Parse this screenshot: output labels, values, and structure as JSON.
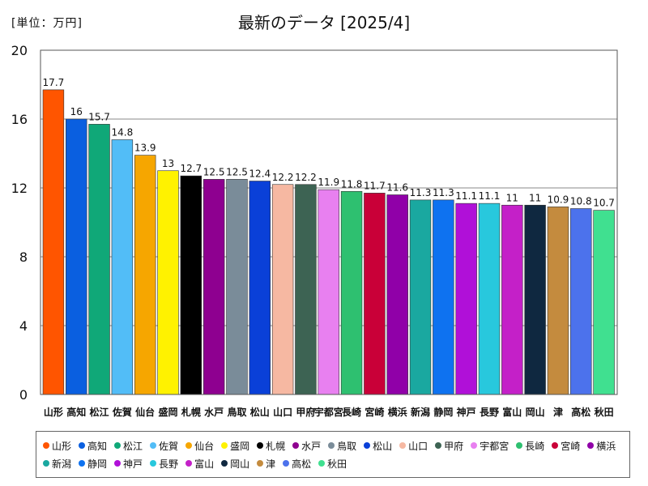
{
  "unit_label": "[単位：万円]",
  "chart_data": {
    "type": "bar",
    "title": "最新のデータ [2025/4]",
    "ylabel": "",
    "ylim": [
      0,
      20
    ],
    "yticks": [
      0,
      4,
      8,
      12,
      16,
      20
    ],
    "grid": true,
    "legend": "bottom",
    "categories": [
      "山形",
      "高知",
      "松江",
      "佐賀",
      "仙台",
      "盛岡",
      "札幌",
      "水戸",
      "鳥取",
      "松山",
      "山口",
      "甲府",
      "宇都宮",
      "長崎",
      "宮崎",
      "横浜",
      "新潟",
      "静岡",
      "神戸",
      "長野",
      "富山",
      "岡山",
      "津",
      "高松",
      "秋田"
    ],
    "values": [
      17.7,
      16,
      15.7,
      14.8,
      13.9,
      13,
      12.7,
      12.5,
      12.5,
      12.4,
      12.2,
      12.2,
      11.9,
      11.8,
      11.7,
      11.6,
      11.3,
      11.3,
      11.1,
      11.1,
      11,
      11,
      10.9,
      10.8,
      10.7
    ],
    "value_labels": [
      "17.7",
      "16",
      "15.7",
      "14.8",
      "13.9",
      "13",
      "12.7",
      "12.5",
      "12.5",
      "12.4",
      "12.2",
      "12.2",
      "11.9",
      "11.8",
      "11.7",
      "11.6",
      "11.3",
      "11.3",
      "11.1",
      "11.1",
      "11",
      "11",
      "10.9",
      "10.8",
      "10.7"
    ],
    "axis_labels": [
      "山形",
      "高知",
      "松江",
      "佐賀",
      "仙台",
      "盛岡",
      "札幌",
      "水戸",
      "鳥取",
      "松山",
      "山口",
      "甲府",
      "宇都宮",
      "長崎",
      "宮崎",
      "横浜",
      "新潟",
      "静岡",
      "神戸",
      "長野",
      "富山",
      "岡山",
      "津",
      "高松",
      "秋田"
    ],
    "colors": [
      "#ff5500",
      "#0a5fe0",
      "#10a878",
      "#52bdf7",
      "#f6a600",
      "#fff200",
      "#000000",
      "#8e0090",
      "#7a8c99",
      "#0a40d8",
      "#f6b8a2",
      "#3d6353",
      "#e880f0",
      "#2ec070",
      "#c90038",
      "#9000a8",
      "#1aa8a0",
      "#0e72f0",
      "#b010d8",
      "#28c8dd",
      "#c420c8",
      "#0f2840",
      "#c48b3e",
      "#4c72ec",
      "#40e090"
    ]
  }
}
